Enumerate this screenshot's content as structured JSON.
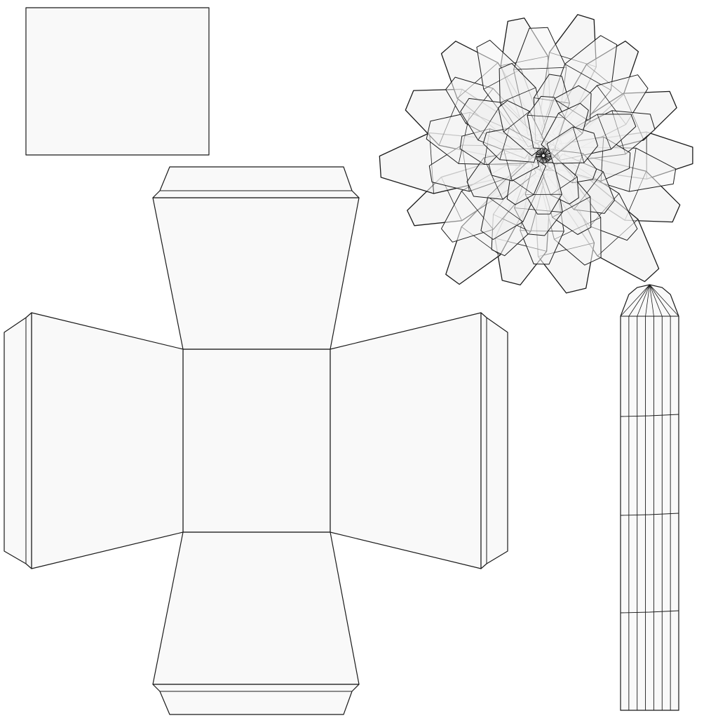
{
  "uv_layout": {
    "fill_color": "#f9f9f9",
    "stroke_color": "#1a1a1a",
    "background_color": "#ffffff",
    "islands": [
      {
        "name": "rectangle-island"
      },
      {
        "name": "box-cross-island"
      },
      {
        "name": "flower-petals-island"
      },
      {
        "name": "stem-strip-island"
      }
    ]
  }
}
